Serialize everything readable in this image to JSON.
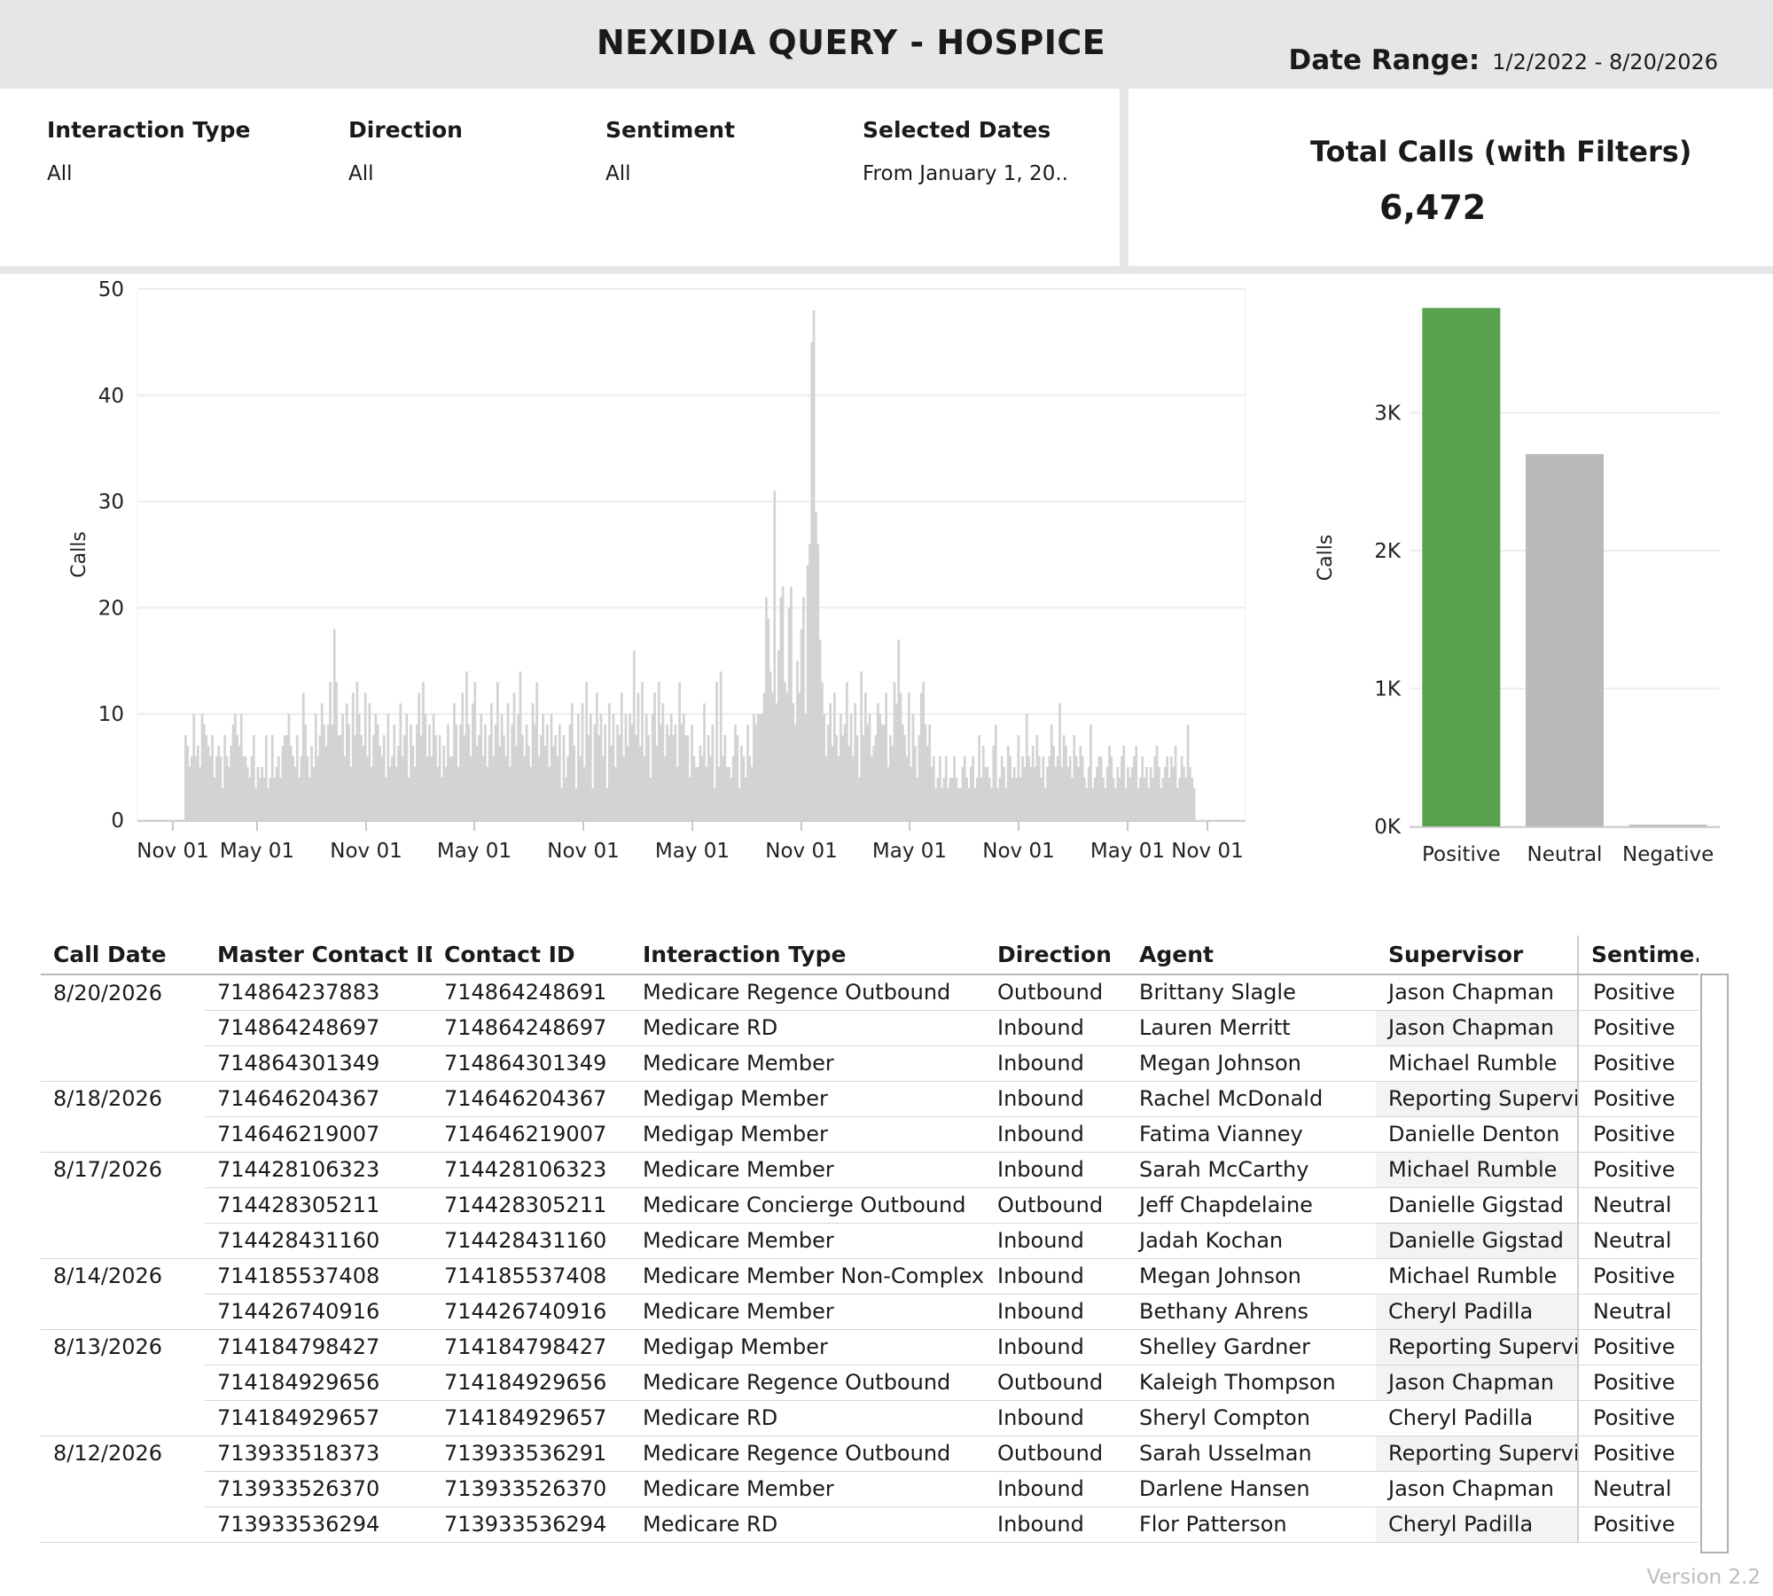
{
  "header": {
    "title": "NEXIDIA QUERY - HOSPICE",
    "date_range_label": "Date Range:",
    "date_range_value": "1/2/2022 - 8/20/2026"
  },
  "filters": [
    {
      "label": "Interaction Type",
      "value": "All"
    },
    {
      "label": "Direction",
      "value": "All"
    },
    {
      "label": "Sentiment",
      "value": "All"
    },
    {
      "label": "Selected Dates",
      "value": "From January 1, 20.."
    }
  ],
  "kpi": {
    "title": "Total Calls (with Filters)",
    "value": "6,472"
  },
  "colors": {
    "positive": "#59a14f",
    "neutral": "#bababa",
    "timeline": "#d3d3d3",
    "header_bg": "#e6e6e6"
  },
  "chart_data": [
    {
      "type": "bar",
      "title": "",
      "xlabel": "",
      "ylabel": "Calls",
      "ylim": [
        0,
        50
      ],
      "y_ticks": [
        0,
        10,
        20,
        30,
        40,
        50
      ],
      "x_ticks": [
        "Nov 01",
        "May 01",
        "Nov 01",
        "May 01",
        "Nov 01",
        "May 01",
        "Nov 01",
        "May 01",
        "Nov 01",
        "May 01",
        "Nov 01"
      ],
      "grid": true,
      "daily_calls": [
        8,
        7,
        5,
        6,
        10,
        6,
        7,
        5,
        10,
        9,
        8,
        7,
        6,
        8,
        4,
        6,
        7,
        6,
        3,
        8,
        6,
        5,
        7,
        9,
        10,
        8,
        7,
        10,
        6,
        6,
        5,
        4,
        6,
        8,
        3,
        5,
        4,
        5,
        4,
        8,
        3,
        4,
        8,
        4,
        5,
        6,
        4,
        7,
        8,
        8,
        10,
        7,
        6,
        5,
        8,
        4,
        6,
        12,
        9,
        6,
        4,
        7,
        5,
        10,
        6,
        8,
        11,
        9,
        7,
        9,
        13,
        9,
        18,
        13,
        8,
        8,
        10,
        6,
        11,
        9,
        5,
        12,
        8,
        13,
        10,
        8,
        7,
        12,
        6,
        11,
        5,
        8,
        10,
        9,
        7,
        6,
        8,
        4,
        10,
        5,
        6,
        9,
        5,
        7,
        11,
        6,
        8,
        10,
        4,
        9,
        7,
        5,
        9,
        12,
        8,
        13,
        10,
        6,
        9,
        6,
        10,
        8,
        5,
        8,
        4,
        7,
        5,
        9,
        6,
        6,
        11,
        9,
        5,
        9,
        12,
        8,
        14,
        9,
        6,
        11,
        13,
        7,
        8,
        10,
        6,
        9,
        5,
        8,
        11,
        6,
        9,
        13,
        7,
        10,
        8,
        6,
        11,
        5,
        9,
        12,
        7,
        10,
        14,
        8,
        6,
        9,
        7,
        5,
        11,
        9,
        13,
        6,
        8,
        10,
        7,
        9,
        5,
        10,
        7,
        8,
        6,
        9,
        3,
        8,
        4,
        6,
        9,
        11,
        7,
        3,
        10,
        6,
        11,
        5,
        13,
        8,
        10,
        3,
        9,
        12,
        8,
        10,
        6,
        9,
        3,
        11,
        7,
        10,
        5,
        9,
        8,
        12,
        6,
        10,
        7,
        10,
        9,
        16,
        8,
        12,
        7,
        13,
        6,
        10,
        8,
        4,
        10,
        12,
        7,
        13,
        9,
        11,
        6,
        9,
        8,
        10,
        8,
        9,
        5,
        13,
        9,
        10,
        8,
        8,
        4,
        9,
        6,
        5,
        5,
        7,
        6,
        11,
        5,
        8,
        6,
        9,
        3,
        13,
        5,
        14,
        6,
        8,
        5,
        5,
        4,
        6,
        9,
        8,
        3,
        7,
        6,
        4,
        9,
        6,
        5,
        10,
        9,
        10,
        10,
        10,
        12,
        21,
        19,
        14,
        12,
        31,
        11,
        16,
        21,
        22,
        13,
        12,
        20,
        22,
        11,
        9,
        15,
        12,
        18,
        21,
        10,
        24,
        26,
        45,
        48,
        29,
        26,
        17,
        13,
        10,
        6,
        9,
        11,
        7,
        12,
        8,
        6,
        10,
        8,
        9,
        13,
        7,
        10,
        6,
        11,
        8,
        4,
        14,
        8,
        12,
        9,
        10,
        6,
        7,
        8,
        11,
        10,
        9,
        9,
        12,
        5,
        8,
        7,
        13,
        11,
        17,
        12,
        9,
        8,
        6,
        12,
        5,
        10,
        7,
        4,
        8,
        12,
        13,
        9,
        7,
        9,
        5,
        6,
        3,
        4,
        6,
        3,
        4,
        6,
        3,
        4,
        4,
        6,
        4,
        3,
        3,
        5,
        6,
        4,
        3,
        5,
        6,
        3,
        4,
        8,
        4,
        7,
        5,
        5,
        4,
        3,
        7,
        9,
        3,
        4,
        6,
        5,
        3,
        7,
        6,
        4,
        5,
        4,
        8,
        4,
        6,
        5,
        10,
        6,
        5,
        7,
        5,
        8,
        6,
        4,
        6,
        3,
        5,
        6,
        9,
        7,
        5,
        6,
        11,
        5,
        8,
        7,
        5,
        6,
        4,
        8,
        6,
        5,
        7,
        6,
        4,
        3,
        5,
        9,
        3,
        4,
        5,
        6,
        6,
        4,
        3,
        5,
        7,
        6,
        4,
        3,
        5,
        4,
        6,
        7,
        3,
        5,
        4,
        5,
        6,
        7,
        3,
        4,
        6,
        4,
        5,
        3,
        5,
        4,
        6,
        7,
        5,
        3,
        4,
        5,
        6,
        4,
        6,
        5,
        7,
        3,
        4,
        6,
        5,
        4,
        9,
        5,
        4,
        3
      ]
    },
    {
      "type": "bar",
      "title": "",
      "xlabel": "",
      "ylabel": "Calls",
      "ylim": [
        0,
        4000
      ],
      "y_ticks": [
        "0K",
        "1K",
        "2K",
        "3K"
      ],
      "categories": [
        "Positive",
        "Neutral",
        "Negative"
      ],
      "values": [
        3760,
        2700,
        12
      ],
      "grid": true
    }
  ],
  "table": {
    "columns": [
      "Call Date",
      "Master Contact ID",
      "Contact ID",
      "Interaction Type",
      "Direction",
      "Agent",
      "Supervisor",
      "Sentime.."
    ],
    "rows": [
      {
        "date": "8/20/2026",
        "master": "714864237883",
        "contact": "714864248691",
        "type": "Medicare Regence Outbound",
        "direction": "Outbound",
        "agent": "Brittany Slagle",
        "supervisor": "Jason Chapman",
        "sentiment": "Positive"
      },
      {
        "date": "",
        "master": "714864248697",
        "contact": "714864248697",
        "type": "Medicare RD",
        "direction": "Inbound",
        "agent": "Lauren Merritt",
        "supervisor": "Jason Chapman",
        "sentiment": "Positive"
      },
      {
        "date": "",
        "master": "714864301349",
        "contact": "714864301349",
        "type": "Medicare Member",
        "direction": "Inbound",
        "agent": "Megan Johnson",
        "supervisor": "Michael Rumble",
        "sentiment": "Positive"
      },
      {
        "date": "8/18/2026",
        "master": "714646204367",
        "contact": "714646204367",
        "type": "Medigap Member",
        "direction": "Inbound",
        "agent": "Rachel McDonald",
        "supervisor": "Reporting Supervis..",
        "sentiment": "Positive"
      },
      {
        "date": "",
        "master": "714646219007",
        "contact": "714646219007",
        "type": "Medigap Member",
        "direction": "Inbound",
        "agent": "Fatima Vianney",
        "supervisor": "Danielle Denton",
        "sentiment": "Positive"
      },
      {
        "date": "8/17/2026",
        "master": "714428106323",
        "contact": "714428106323",
        "type": "Medicare Member",
        "direction": "Inbound",
        "agent": "Sarah McCarthy",
        "supervisor": "Michael Rumble",
        "sentiment": "Positive"
      },
      {
        "date": "",
        "master": "714428305211",
        "contact": "714428305211",
        "type": "Medicare Concierge Outbound",
        "direction": "Outbound",
        "agent": "Jeff Chapdelaine",
        "supervisor": "Danielle Gigstad",
        "sentiment": "Neutral"
      },
      {
        "date": "",
        "master": "714428431160",
        "contact": "714428431160",
        "type": "Medicare Member",
        "direction": "Inbound",
        "agent": "Jadah Kochan",
        "supervisor": "Danielle Gigstad",
        "sentiment": "Neutral"
      },
      {
        "date": "8/14/2026",
        "master": "714185537408",
        "contact": "714185537408",
        "type": "Medicare Member Non-Complex",
        "direction": "Inbound",
        "agent": "Megan Johnson",
        "supervisor": "Michael Rumble",
        "sentiment": "Positive"
      },
      {
        "date": "",
        "master": "714426740916",
        "contact": "714426740916",
        "type": "Medicare Member",
        "direction": "Inbound",
        "agent": "Bethany Ahrens",
        "supervisor": "Cheryl Padilla",
        "sentiment": "Neutral"
      },
      {
        "date": "8/13/2026",
        "master": "714184798427",
        "contact": "714184798427",
        "type": "Medigap Member",
        "direction": "Inbound",
        "agent": "Shelley Gardner",
        "supervisor": "Reporting Supervis..",
        "sentiment": "Positive"
      },
      {
        "date": "",
        "master": "714184929656",
        "contact": "714184929656",
        "type": "Medicare Regence Outbound",
        "direction": "Outbound",
        "agent": "Kaleigh Thompson",
        "supervisor": "Jason Chapman",
        "sentiment": "Positive"
      },
      {
        "date": "",
        "master": "714184929657",
        "contact": "714184929657",
        "type": "Medicare RD",
        "direction": "Inbound",
        "agent": "Sheryl Compton",
        "supervisor": "Cheryl Padilla",
        "sentiment": "Positive"
      },
      {
        "date": "8/12/2026",
        "master": "713933518373",
        "contact": "713933536291",
        "type": "Medicare Regence Outbound",
        "direction": "Outbound",
        "agent": "Sarah Usselman",
        "supervisor": "Reporting Supervis..",
        "sentiment": "Positive"
      },
      {
        "date": "",
        "master": "713933526370",
        "contact": "713933526370",
        "type": "Medicare Member",
        "direction": "Inbound",
        "agent": "Darlene Hansen",
        "supervisor": "Jason Chapman",
        "sentiment": "Neutral"
      },
      {
        "date": "",
        "master": "713933536294",
        "contact": "713933536294",
        "type": "Medicare RD",
        "direction": "Inbound",
        "agent": "Flor Patterson",
        "supervisor": "Cheryl Padilla",
        "sentiment": "Positive"
      }
    ]
  },
  "footer": {
    "version": "Version 2.2"
  }
}
